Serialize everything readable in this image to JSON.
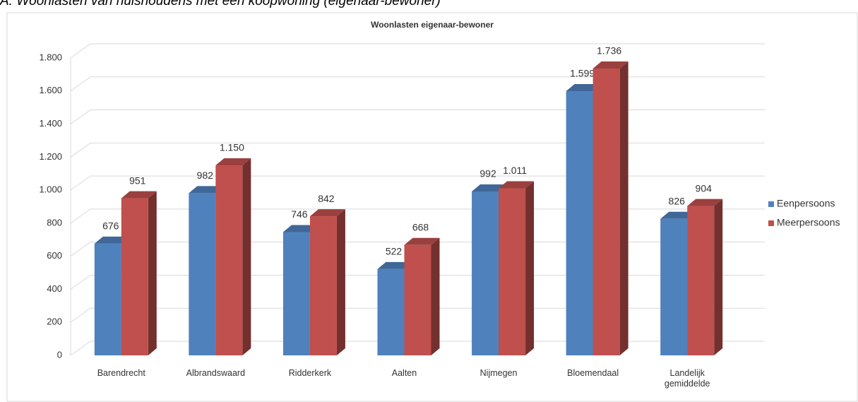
{
  "heading": "A. Woonlasten van huishoudens met een koopwoning (eigenaar-bewoner)",
  "chart_data": {
    "type": "bar3d",
    "title": "Woonlasten eigenaar-bewoner",
    "categories": [
      "Barendrecht",
      "Albrandswaard",
      "Ridderkerk",
      "Aalten",
      "Nijmegen",
      "Bloemendaal",
      "Landelijk gemiddelde"
    ],
    "series": [
      {
        "name": "Eenpersoons",
        "color": "#4f81bd",
        "values": [
          676,
          982,
          746,
          522,
          992,
          1599,
          826
        ],
        "value_labels": [
          "676",
          "982",
          "746",
          "522",
          "992",
          "1.599",
          "826"
        ]
      },
      {
        "name": "Meerpersoons",
        "color": "#c0504d",
        "values": [
          951,
          1150,
          842,
          668,
          1011,
          1736,
          904
        ],
        "value_labels": [
          "951",
          "1.150",
          "842",
          "668",
          "1.011",
          "1.736",
          "904"
        ]
      }
    ],
    "ylim": [
      0,
      1800
    ],
    "yticks": [
      0,
      200,
      400,
      600,
      800,
      {
        "value": 1000,
        "label": "1.000"
      },
      {
        "value": 1200,
        "label": "1.200"
      },
      {
        "value": 1400,
        "label": "1.400"
      },
      {
        "value": 1600,
        "label": "1.600"
      },
      {
        "value": 1800,
        "label": "1.800"
      }
    ],
    "grid": true,
    "legend": "right"
  }
}
